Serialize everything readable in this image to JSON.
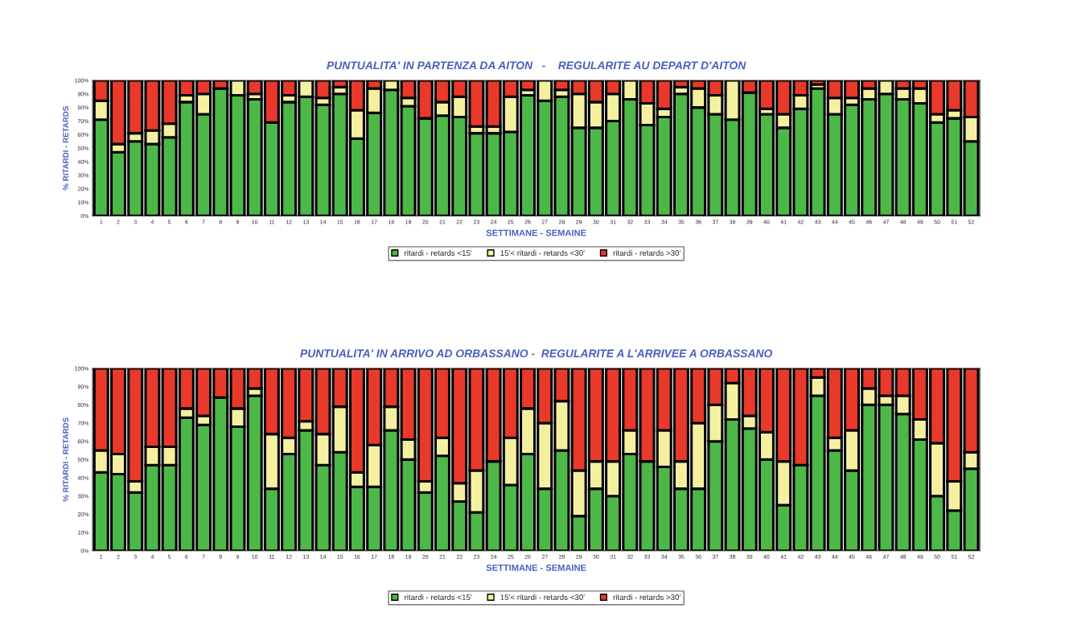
{
  "chart_data": [
    {
      "type": "bar",
      "title": "PUNTUALITA' IN PARTENZA DA AITON   -    REGULARITE AU DEPART D'AITON",
      "xlabel": "SETTIMANE - SEMAINE",
      "ylabel": "% RITARDI - RETARDS",
      "stacked": true,
      "legend": "bottom",
      "grid": false,
      "categories": [
        "1",
        "2",
        "3",
        "4",
        "5",
        "6",
        "7",
        "8",
        "9",
        "10",
        "11",
        "12",
        "13",
        "14",
        "15",
        "16",
        "17",
        "18",
        "19",
        "20",
        "21",
        "22",
        "23",
        "24",
        "25",
        "26",
        "27",
        "28",
        "29",
        "30",
        "31",
        "32",
        "33",
        "34",
        "35",
        "36",
        "37",
        "38",
        "39",
        "40",
        "41",
        "42",
        "43",
        "44",
        "45",
        "46",
        "47",
        "48",
        "49",
        "50",
        "51",
        "52"
      ],
      "ylim": [
        0,
        100
      ],
      "yticks": [
        {
          "value": 0,
          "label": "0%"
        },
        {
          "value": 10,
          "label": "10%"
        },
        {
          "value": 20,
          "label": "20%"
        },
        {
          "value": 30,
          "label": "30%"
        },
        {
          "value": 40,
          "label": "40%"
        },
        {
          "value": 50,
          "label": "50%"
        },
        {
          "value": 60,
          "label": "60%"
        },
        {
          "value": 70,
          "label": "70%"
        },
        {
          "value": 80,
          "label": "80%"
        },
        {
          "value": 90,
          "label": "90%"
        },
        {
          "value": 100,
          "label": "100%"
        }
      ],
      "series": [
        {
          "name": "ritardi - retards <15'",
          "color": "#4db848",
          "values": [
            71,
            47,
            55,
            53,
            58,
            84,
            75,
            94,
            89,
            86,
            69,
            84,
            88,
            82,
            90,
            57,
            76,
            93,
            81,
            72,
            74,
            73,
            61,
            61,
            62,
            89,
            85,
            88,
            65,
            65,
            70,
            86,
            67,
            73,
            90,
            80,
            75,
            71,
            91,
            75,
            65,
            79,
            94,
            75,
            82,
            86,
            90,
            86,
            83,
            69,
            72,
            55
          ]
        },
        {
          "name": "15'< ritardi - retards <30'",
          "color": "#f5f0a0",
          "values": [
            14,
            6,
            6,
            10,
            10,
            5,
            15,
            0,
            11,
            4,
            0,
            5,
            12,
            5,
            5,
            21,
            18,
            7,
            6,
            0,
            10,
            15,
            5,
            5,
            26,
            4,
            15,
            5,
            25,
            19,
            20,
            14,
            16,
            6,
            5,
            14,
            14,
            29,
            0,
            4,
            10,
            10,
            3,
            12,
            5,
            8,
            10,
            8,
            11,
            6,
            6,
            18
          ]
        },
        {
          "name": "ritardi - retards >30'",
          "color": "#e8392a",
          "values": [
            15,
            47,
            39,
            37,
            32,
            11,
            10,
            6,
            0,
            10,
            31,
            11,
            0,
            13,
            5,
            22,
            6,
            0,
            13,
            28,
            16,
            12,
            34,
            34,
            12,
            7,
            0,
            7,
            10,
            16,
            10,
            0,
            17,
            21,
            5,
            6,
            11,
            0,
            9,
            21,
            25,
            11,
            3,
            13,
            13,
            6,
            0,
            6,
            6,
            25,
            22,
            27
          ]
        }
      ]
    },
    {
      "type": "bar",
      "title": "PUNTUALITA' IN ARRIVO AD ORBASSANO -  REGULARITE A L'ARRIVEE A ORBASSANO",
      "xlabel": "SETTIMANE - SEMAINE",
      "ylabel": "% RITARDI - RETARDS",
      "stacked": true,
      "legend": "bottom",
      "grid": false,
      "categories": [
        "1",
        "2",
        "3",
        "4",
        "5",
        "6",
        "7",
        "8",
        "9",
        "10",
        "11",
        "12",
        "13",
        "14",
        "15",
        "16",
        "17",
        "18",
        "19",
        "20",
        "21",
        "22",
        "23",
        "24",
        "25",
        "26",
        "27",
        "28",
        "29",
        "30",
        "31",
        "32",
        "33",
        "34",
        "35",
        "36",
        "37",
        "38",
        "39",
        "40",
        "41",
        "42",
        "43",
        "44",
        "45",
        "46",
        "47",
        "48",
        "49",
        "50",
        "51",
        "52"
      ],
      "ylim": [
        0,
        100
      ],
      "yticks": [
        {
          "value": 0,
          "label": "0%"
        },
        {
          "value": 10,
          "label": "10%"
        },
        {
          "value": 20,
          "label": "20%"
        },
        {
          "value": 30,
          "label": "30%"
        },
        {
          "value": 40,
          "label": "40%"
        },
        {
          "value": 50,
          "label": "50%"
        },
        {
          "value": 60,
          "label": "60%"
        },
        {
          "value": 70,
          "label": "70%"
        },
        {
          "value": 80,
          "label": "80%"
        },
        {
          "value": 90,
          "label": "90%"
        },
        {
          "value": 100,
          "label": "100%"
        }
      ],
      "series": [
        {
          "name": "ritardi - retards <15'",
          "color": "#4db848",
          "values": [
            43,
            42,
            32,
            47,
            47,
            73,
            69,
            84,
            68,
            85,
            34,
            53,
            66,
            47,
            54,
            35,
            35,
            66,
            50,
            32,
            52,
            27,
            21,
            49,
            36,
            53,
            34,
            55,
            19,
            34,
            30,
            53,
            49,
            46,
            34,
            34,
            60,
            72,
            67,
            50,
            25,
            47,
            85,
            55,
            44,
            80,
            80,
            75,
            61,
            30,
            22,
            45
          ]
        },
        {
          "name": "15'< ritardi - retards <30'",
          "color": "#f5f0a0",
          "values": [
            12,
            11,
            6,
            10,
            10,
            5,
            5,
            0,
            10,
            4,
            30,
            9,
            5,
            17,
            25,
            8,
            23,
            13,
            11,
            6,
            10,
            10,
            23,
            0,
            26,
            25,
            36,
            27,
            25,
            15,
            19,
            13,
            0,
            20,
            15,
            36,
            20,
            20,
            7,
            15,
            24,
            0,
            10,
            7,
            22,
            9,
            5,
            10,
            11,
            29,
            16,
            9
          ]
        },
        {
          "name": "ritardi - retards >30'",
          "color": "#e8392a",
          "values": [
            45,
            47,
            62,
            43,
            43,
            22,
            26,
            16,
            22,
            11,
            36,
            38,
            29,
            36,
            21,
            57,
            42,
            21,
            39,
            62,
            38,
            63,
            56,
            51,
            38,
            22,
            30,
            18,
            56,
            51,
            51,
            34,
            51,
            34,
            51,
            30,
            20,
            8,
            26,
            35,
            51,
            53,
            5,
            38,
            34,
            11,
            15,
            15,
            28,
            41,
            62,
            46
          ]
        }
      ]
    }
  ]
}
